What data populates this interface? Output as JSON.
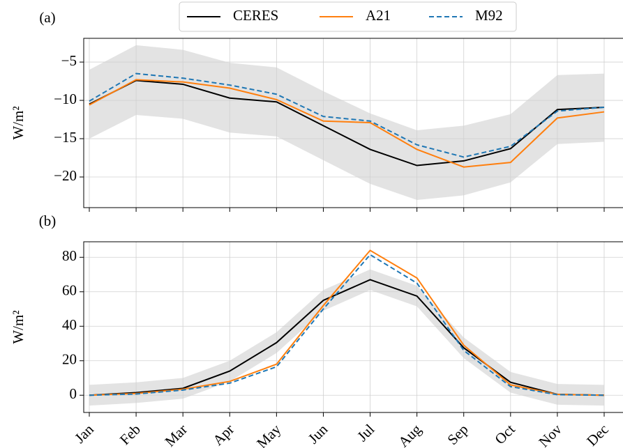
{
  "chart_data": [
    {
      "type": "line",
      "label": "(a)",
      "ylabel": "W/m²",
      "grid": true,
      "legend": "top",
      "ylim": [
        -24.0,
        -1.9
      ],
      "yticks": [
        {
          "value": -5,
          "label": "−5"
        },
        {
          "value": -10,
          "label": "−10"
        },
        {
          "value": -15,
          "label": "−15"
        },
        {
          "value": -20,
          "label": "−20"
        }
      ],
      "band": {
        "color": "#e3e3e3",
        "upper": [
          -6.0,
          -2.8,
          -3.4,
          -5.1,
          -5.7,
          -8.8,
          -11.7,
          -13.9,
          -13.3,
          -11.8,
          -6.7,
          -6.5
        ],
        "lower": [
          -15.0,
          -11.9,
          -12.4,
          -14.2,
          -14.7,
          -17.8,
          -20.9,
          -23.0,
          -22.4,
          -20.7,
          -15.7,
          -15.4
        ]
      },
      "series": [
        {
          "name": "CERES",
          "color": "#000000",
          "dash": false,
          "values": [
            -10.5,
            -7.4,
            -7.9,
            -9.7,
            -10.2,
            -13.3,
            -16.4,
            -18.5,
            -17.9,
            -16.3,
            -11.2,
            -10.9
          ]
        },
        {
          "name": "A21",
          "color": "#ff7f0e",
          "dash": false,
          "values": [
            -10.6,
            -7.3,
            -7.6,
            -8.4,
            -9.9,
            -12.7,
            -12.9,
            -16.4,
            -18.7,
            -18.1,
            -12.3,
            -11.5
          ]
        },
        {
          "name": "M92",
          "color": "#1f77b4",
          "dash": true,
          "values": [
            -10.1,
            -6.5,
            -7.1,
            -8.0,
            -9.2,
            -12.1,
            -12.7,
            -15.8,
            -17.4,
            -16.0,
            -11.4,
            -10.9
          ]
        }
      ]
    },
    {
      "type": "line",
      "label": "(b)",
      "ylabel": "W/m²",
      "grid": true,
      "categories": [
        "Jan",
        "Feb",
        "Mar",
        "Apr",
        "May",
        "Jun",
        "Jul",
        "Aug",
        "Sep",
        "Oct",
        "Nov",
        "Dec"
      ],
      "ylim": [
        -10,
        89
      ],
      "yticks": [
        0,
        20,
        40,
        60,
        80
      ],
      "band": {
        "color": "#e3e3e3",
        "upper": [
          6,
          7.5,
          10,
          20,
          36.5,
          61,
          73,
          63.5,
          33.5,
          13.5,
          6.5,
          6
        ],
        "lower": [
          -6,
          -4.5,
          -2,
          8,
          24.5,
          49,
          61,
          51.5,
          21.5,
          1.5,
          -5.5,
          -6
        ]
      },
      "series": [
        {
          "color": "#000000",
          "dash": false,
          "values": [
            0,
            1.5,
            4,
            14,
            30.5,
            55,
            67,
            57.5,
            27.5,
            7.5,
            0.5,
            0
          ]
        },
        {
          "color": "#ff7f0e",
          "dash": false,
          "values": [
            0,
            1,
            3.5,
            8,
            18,
            52,
            84,
            68,
            29,
            6,
            0.5,
            0
          ]
        },
        {
          "color": "#1f77b4",
          "dash": true,
          "values": [
            0,
            0.7,
            3,
            7,
            16.5,
            50,
            81.5,
            65,
            26,
            5,
            0.3,
            0
          ]
        }
      ]
    }
  ]
}
